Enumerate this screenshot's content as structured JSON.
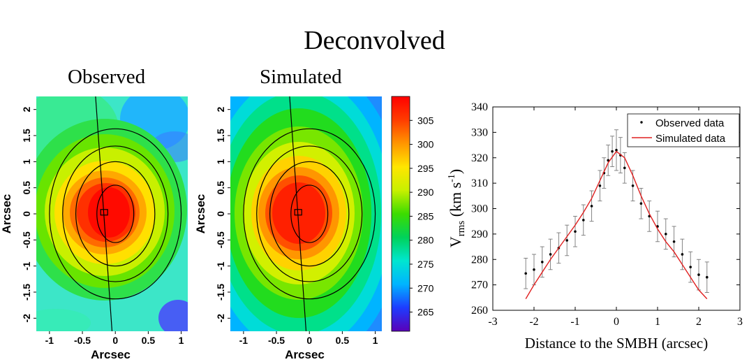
{
  "figure_title": "Deconvolved",
  "panels": {
    "observed_title": "Observed",
    "simulated_title": "Simulated"
  },
  "colorbar": {
    "min": 261,
    "max": 310,
    "tick_labels": [
      "305",
      "300",
      "295",
      "290",
      "285",
      "280",
      "275",
      "270",
      "265"
    ],
    "colors": [
      "#5a00b8",
      "#1e3cff",
      "#00b4ff",
      "#00e6d0",
      "#00d25a",
      "#3cdc00",
      "#c8f000",
      "#ffe600",
      "#ff9600",
      "#ff3c00",
      "#ff0000"
    ]
  },
  "chart_data": [
    {
      "type": "heatmap",
      "name": "Observed",
      "xlabel": "Arcsec",
      "ylabel": "Arcsec",
      "xlim": [
        -1.2,
        1.1
      ],
      "ylim": [
        -2.25,
        2.25
      ],
      "x_ticks": [
        "-1",
        "-0.5",
        "0",
        "0.5",
        "1"
      ],
      "y_ticks": [
        "2",
        "1.5",
        "1",
        "0.5",
        "0",
        "-0.5",
        "-1",
        "-1.5",
        "-2"
      ],
      "peak_value": 309,
      "peak_center": [
        0.0,
        0.0
      ],
      "contour_half_widths_x": [
        0.28,
        0.6,
        0.8,
        1.0
      ],
      "contour_half_heights_y": [
        0.55,
        1.0,
        1.3,
        1.63
      ],
      "slit_line": [
        [
          -0.3,
          2.25
        ],
        [
          -0.05,
          -2.25
        ]
      ],
      "marker_center": [
        -0.17,
        0.03
      ]
    },
    {
      "type": "heatmap",
      "name": "Simulated",
      "xlabel": "Arcsec",
      "ylabel": "Arcsec",
      "xlim": [
        -1.2,
        1.1
      ],
      "ylim": [
        -2.25,
        2.25
      ],
      "x_ticks": [
        "-1",
        "-0.5",
        "0",
        "0.5",
        "1"
      ],
      "y_ticks": [
        "2",
        "1.5",
        "1",
        "0.5",
        "0",
        "-0.5",
        "-1",
        "-1.5",
        "-2"
      ],
      "peak_value": 309,
      "peak_center": [
        0.0,
        0.0
      ],
      "contour_half_widths_x": [
        0.28,
        0.6,
        0.8,
        1.0
      ],
      "contour_half_heights_y": [
        0.55,
        1.0,
        1.3,
        1.63
      ],
      "slit_line": [
        [
          -0.3,
          2.25
        ],
        [
          -0.05,
          -2.25
        ]
      ],
      "marker_center": [
        -0.17,
        0.03
      ]
    },
    {
      "type": "line",
      "xlabel": "Distance to the SMBH (arcsec)",
      "ylabel_main": "V",
      "ylabel_sub": "rms",
      "ylabel_unit_pre": " (km s",
      "ylabel_unit_sup": "-1",
      "ylabel_unit_post": ")",
      "xlim": [
        -3,
        3
      ],
      "ylim": [
        260,
        340
      ],
      "x_ticks": [
        -3,
        -2,
        -1,
        0,
        1,
        2,
        3
      ],
      "y_ticks": [
        260,
        270,
        280,
        290,
        300,
        310,
        320,
        330,
        340
      ],
      "legend_position": "top-right",
      "series": [
        {
          "name": "Observed data",
          "style": "points-with-errorbars",
          "color": "#000000",
          "x": [
            -2.2,
            -2.0,
            -1.8,
            -1.6,
            -1.4,
            -1.2,
            -1.0,
            -0.8,
            -0.6,
            -0.4,
            -0.3,
            -0.2,
            -0.1,
            0.0,
            0.1,
            0.2,
            0.4,
            0.6,
            0.8,
            1.0,
            1.2,
            1.4,
            1.6,
            1.8,
            2.0,
            2.2
          ],
          "y": [
            274.5,
            276,
            279,
            282,
            284.5,
            287.5,
            291,
            295.5,
            301,
            309,
            314,
            319,
            322.5,
            323,
            321,
            316,
            309,
            302,
            297,
            293,
            290,
            287,
            282,
            277,
            274,
            273
          ],
          "yerr": [
            6,
            6,
            6,
            6,
            6,
            6,
            6,
            6,
            6,
            6,
            6,
            6,
            6,
            8,
            7,
            6,
            6,
            6,
            6,
            6,
            6,
            6,
            6,
            6,
            6,
            6
          ]
        },
        {
          "name": "Simulated data",
          "style": "line",
          "color": "#e02020",
          "x": [
            -2.2,
            -2.0,
            -1.8,
            -1.6,
            -1.4,
            -1.2,
            -1.0,
            -0.8,
            -0.6,
            -0.4,
            -0.2,
            0.0,
            0.2,
            0.4,
            0.6,
            0.8,
            1.0,
            1.2,
            1.4,
            1.6,
            1.8,
            2.0,
            2.2
          ],
          "y": [
            264.5,
            270,
            275,
            280,
            284.5,
            289,
            293.5,
            298.5,
            304,
            311,
            318,
            322.5,
            320,
            313,
            305,
            298,
            292,
            287,
            283,
            278,
            273,
            268,
            264.5
          ]
        }
      ]
    }
  ]
}
